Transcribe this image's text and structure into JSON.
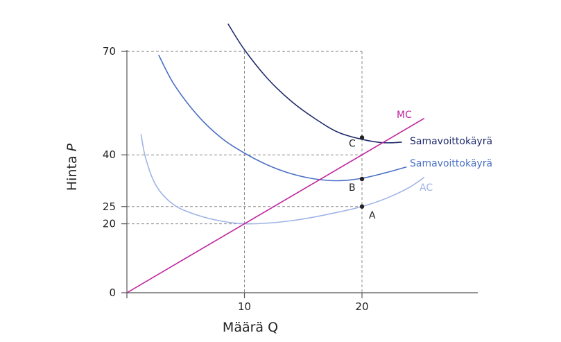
{
  "chart_data": {
    "type": "line",
    "title": "",
    "xlabel": "Määrä Q",
    "ylabel_prefix": "Hinta ",
    "ylabel_var": "P",
    "xlim": [
      0,
      30
    ],
    "ylim": [
      0,
      70
    ],
    "x_ticks": [
      10,
      20
    ],
    "y_ticks": [
      0,
      20,
      25,
      40,
      70
    ],
    "x_tick_labels": [
      "10",
      "20"
    ],
    "y_tick_labels": [
      "0",
      "20",
      "25",
      "40",
      "70"
    ],
    "grid": "dashed reference lines at Q=10, Q=20 and P=20, 25, 40, 70",
    "series": [
      {
        "name": "AC",
        "label": "AC",
        "color": "#9fb3e6",
        "points": [
          [
            1.2,
            46
          ],
          [
            1.6,
            39
          ],
          [
            2.5,
            31
          ],
          [
            4,
            25.5
          ],
          [
            6,
            22.5
          ],
          [
            8,
            20.8
          ],
          [
            10,
            20
          ],
          [
            12,
            20.2
          ],
          [
            14,
            20.9
          ],
          [
            16,
            22
          ],
          [
            18,
            23.4
          ],
          [
            20,
            25
          ],
          [
            22,
            27.3
          ],
          [
            24,
            30.5
          ],
          [
            25.3,
            33.5
          ]
        ]
      },
      {
        "name": "Samavoittokäyrä (B)",
        "label": "Samavoittokäyrä",
        "color": "#4a70c4",
        "points": [
          [
            2.7,
            69
          ],
          [
            4,
            60.5
          ],
          [
            6,
            51.5
          ],
          [
            8,
            45
          ],
          [
            10,
            40.5
          ],
          [
            12,
            37
          ],
          [
            14,
            34.5
          ],
          [
            16,
            33
          ],
          [
            18,
            32.5
          ],
          [
            20,
            33.2
          ],
          [
            22,
            34.8
          ],
          [
            23.8,
            36.5
          ]
        ]
      },
      {
        "name": "Samavoittokäyrä (C)",
        "label": "Samavoittokäyrä",
        "color": "#1f2b6b",
        "points": [
          [
            8.6,
            78
          ],
          [
            10,
            70.5
          ],
          [
            12,
            62
          ],
          [
            14,
            55.5
          ],
          [
            16,
            50.5
          ],
          [
            18,
            46.5
          ],
          [
            20,
            44.5
          ],
          [
            21.5,
            43.6
          ],
          [
            22.5,
            43.5
          ],
          [
            23.4,
            43.7
          ]
        ]
      },
      {
        "name": "MC",
        "label": "MC",
        "color": "#c0259f",
        "points": [
          [
            0,
            0
          ],
          [
            25.3,
            50.6
          ]
        ]
      }
    ],
    "points": [
      {
        "label": "A",
        "x": 20,
        "y": 25
      },
      {
        "label": "B",
        "x": 20,
        "y": 33
      },
      {
        "label": "C",
        "x": 20,
        "y": 45
      }
    ]
  }
}
